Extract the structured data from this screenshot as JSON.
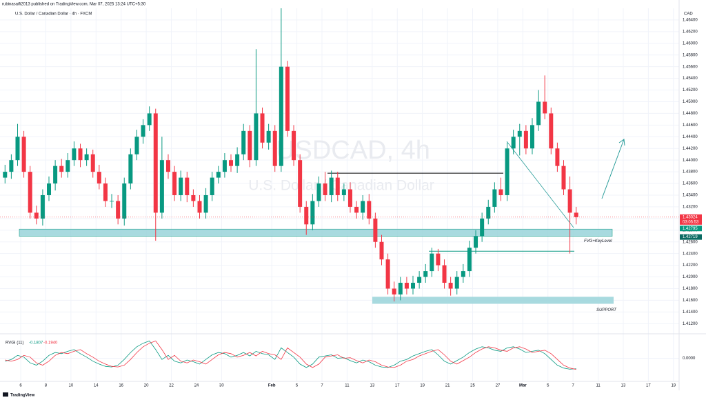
{
  "chart_data": {
    "type": "candlestick",
    "publisher_note": "rubinasaifi2013 published on TradingView.com, Mar 07, 2025 13:24 UTC+5:30",
    "title": "U.S. Dollar / Canadian Dollar · 4h · FXCM",
    "watermark": [
      "USDCAD, 4h",
      "U.S. Dollar / Canadian Dollar"
    ],
    "currency": "CAD",
    "countdown": "03:05:53",
    "logo": "TradingView",
    "up_color": "#089981",
    "down_color": "#f23645",
    "grid": true,
    "xlim": [
      -0.8,
      107.4
    ],
    "xticks": [
      {
        "value": 2.5,
        "label": "6"
      },
      {
        "value": 6.5,
        "label": "8"
      },
      {
        "value": 10.5,
        "label": "10"
      },
      {
        "value": 14.5,
        "label": "14"
      },
      {
        "value": 18.5,
        "label": "16"
      },
      {
        "value": 22.5,
        "label": "20"
      },
      {
        "value": 26.5,
        "label": "22"
      },
      {
        "value": 30.5,
        "label": "24"
      },
      {
        "value": 34.5,
        "label": "30"
      },
      {
        "value": 42.5,
        "label": "Feb"
      },
      {
        "value": 46.5,
        "label": "5"
      },
      {
        "value": 50.5,
        "label": "7"
      },
      {
        "value": 54.5,
        "label": "11"
      },
      {
        "value": 58.5,
        "label": "13"
      },
      {
        "value": 62.5,
        "label": "17"
      },
      {
        "value": 66.5,
        "label": "19"
      },
      {
        "value": 70.5,
        "label": "21"
      },
      {
        "value": 74.5,
        "label": "25"
      },
      {
        "value": 78.5,
        "label": "27"
      },
      {
        "value": 82.5,
        "label": "Mar"
      },
      {
        "value": 86.5,
        "label": "5"
      },
      {
        "value": 90.5,
        "label": "7"
      },
      {
        "value": 94.5,
        "label": "11"
      },
      {
        "value": 98.5,
        "label": "13"
      },
      {
        "value": 102.5,
        "label": "17"
      },
      {
        "value": 106.5,
        "label": "19"
      }
    ],
    "ylim": [
      1.4105,
      1.466
    ],
    "yticks": [
      {
        "value": 1.412,
        "label": "1.41200"
      },
      {
        "value": 1.414,
        "label": "1.41400"
      },
      {
        "value": 1.416,
        "label": "1.41600"
      },
      {
        "value": 1.418,
        "label": "1.41800"
      },
      {
        "value": 1.42,
        "label": "1.42000"
      },
      {
        "value": 1.422,
        "label": "1.42200"
      },
      {
        "value": 1.424,
        "label": "1.42400"
      },
      {
        "value": 1.426,
        "label": "1.42600"
      },
      {
        "value": 1.428,
        "label": "1.42800"
      },
      {
        "value": 1.43,
        "label": "1.43000"
      },
      {
        "value": 1.432,
        "label": "1.43200"
      },
      {
        "value": 1.434,
        "label": "1.43400"
      },
      {
        "value": 1.436,
        "label": "1.43600"
      },
      {
        "value": 1.438,
        "label": "1.43800"
      },
      {
        "value": 1.44,
        "label": "1.44000"
      },
      {
        "value": 1.442,
        "label": "1.44200"
      },
      {
        "value": 1.444,
        "label": "1.44400"
      },
      {
        "value": 1.446,
        "label": "1.44600"
      },
      {
        "value": 1.448,
        "label": "1.44800"
      },
      {
        "value": 1.45,
        "label": "1.45000"
      },
      {
        "value": 1.452,
        "label": "1.45200"
      },
      {
        "value": 1.454,
        "label": "1.45400"
      },
      {
        "value": 1.456,
        "label": "1.45600"
      },
      {
        "value": 1.458,
        "label": "1.45800"
      },
      {
        "value": 1.46,
        "label": "1.46000"
      },
      {
        "value": 1.462,
        "label": "1.46200"
      },
      {
        "value": 1.464,
        "label": "1.46400"
      }
    ],
    "open": [
      1.437,
      1.438,
      1.44,
      1.444,
      1.438,
      1.431,
      1.43,
      1.434,
      1.436,
      1.439,
      1.438,
      1.44,
      1.442,
      1.44,
      1.441,
      1.438,
      1.436,
      1.433,
      1.433,
      1.43,
      1.436,
      1.441,
      1.444,
      1.446,
      1.448,
      1.431,
      1.44,
      1.438,
      1.434,
      1.437,
      1.434,
      1.433,
      1.431,
      1.434,
      1.437,
      1.438,
      1.44,
      1.439,
      1.441,
      1.445,
      1.44,
      1.448,
      1.443,
      1.445,
      1.439,
      1.456,
      1.445,
      1.44,
      1.432,
      1.429,
      1.433,
      1.436,
      1.434,
      1.437,
      1.434,
      1.435,
      1.432,
      1.431,
      1.433,
      1.43,
      1.426,
      1.423,
      1.418,
      1.417,
      1.419,
      1.418,
      1.419,
      1.42,
      1.421,
      1.424,
      1.422,
      1.419,
      1.418,
      1.42,
      1.421,
      1.425,
      1.427,
      1.43,
      1.432,
      1.435,
      1.434,
      1.442,
      1.444,
      1.445,
      1.442,
      1.446,
      1.45,
      1.448,
      1.442,
      1.439,
      1.435,
      1.431
    ],
    "high": [
      1.4392,
      1.441,
      1.4462,
      1.445,
      1.439,
      1.4322,
      1.435,
      1.4372,
      1.44,
      1.4402,
      1.4412,
      1.4432,
      1.4428,
      1.442,
      1.4418,
      1.4392,
      1.437,
      1.4342,
      1.434,
      1.437,
      1.442,
      1.4452,
      1.447,
      1.4492,
      1.4488,
      1.444,
      1.441,
      1.439,
      1.4382,
      1.438,
      1.435,
      1.434,
      1.4352,
      1.438,
      1.439,
      1.4412,
      1.441,
      1.4422,
      1.4462,
      1.446,
      1.459,
      1.449,
      1.4462,
      1.446,
      1.466,
      1.457,
      1.446,
      1.441,
      1.433,
      1.4342,
      1.4372,
      1.438,
      1.4382,
      1.438,
      1.436,
      1.4362,
      1.433,
      1.434,
      1.4342,
      1.431,
      1.4272,
      1.424,
      1.4192,
      1.42,
      1.42,
      1.4202,
      1.421,
      1.4222,
      1.425,
      1.4248,
      1.423,
      1.42,
      1.421,
      1.4222,
      1.4262,
      1.428,
      1.431,
      1.4332,
      1.4362,
      1.437,
      1.443,
      1.4452,
      1.4462,
      1.446,
      1.4472,
      1.452,
      1.4545,
      1.449,
      1.443,
      1.44,
      1.4372,
      1.432
    ],
    "low": [
      1.436,
      1.4368,
      1.439,
      1.437,
      1.43,
      1.429,
      1.4288,
      1.433,
      1.4348,
      1.437,
      1.437,
      1.439,
      1.4388,
      1.439,
      1.437,
      1.435,
      1.432,
      1.4318,
      1.429,
      1.4288,
      1.435,
      1.44,
      1.4428,
      1.445,
      1.4262,
      1.43,
      1.4368,
      1.433,
      1.433,
      1.4328,
      1.432,
      1.43,
      1.43,
      1.433,
      1.436,
      1.437,
      1.438,
      1.4378,
      1.44,
      1.4388,
      1.439,
      1.442,
      1.4418,
      1.438,
      1.438,
      1.444,
      1.439,
      1.431,
      1.4272,
      1.428,
      1.432,
      1.433,
      1.4328,
      1.433,
      1.433,
      1.431,
      1.43,
      1.4298,
      1.429,
      1.425,
      1.422,
      1.417,
      1.4158,
      1.416,
      1.417,
      1.417,
      1.418,
      1.419,
      1.42,
      1.421,
      1.418,
      1.4168,
      1.417,
      1.419,
      1.42,
      1.424,
      1.426,
      1.429,
      1.431,
      1.433,
      1.433,
      1.441,
      1.4408,
      1.441,
      1.441,
      1.445,
      1.447,
      1.441,
      1.438,
      1.434,
      1.424,
      1.429
    ],
    "close": [
      1.438,
      1.44,
      1.444,
      1.438,
      1.431,
      1.43,
      1.434,
      1.436,
      1.439,
      1.438,
      1.44,
      1.442,
      1.44,
      1.441,
      1.438,
      1.436,
      1.433,
      1.433,
      1.43,
      1.436,
      1.441,
      1.444,
      1.446,
      1.448,
      1.431,
      1.44,
      1.438,
      1.434,
      1.437,
      1.434,
      1.433,
      1.431,
      1.434,
      1.437,
      1.438,
      1.44,
      1.439,
      1.441,
      1.445,
      1.44,
      1.448,
      1.443,
      1.445,
      1.439,
      1.456,
      1.445,
      1.44,
      1.432,
      1.429,
      1.433,
      1.436,
      1.434,
      1.437,
      1.434,
      1.435,
      1.432,
      1.431,
      1.433,
      1.43,
      1.426,
      1.423,
      1.418,
      1.417,
      1.419,
      1.418,
      1.419,
      1.42,
      1.421,
      1.424,
      1.422,
      1.419,
      1.418,
      1.42,
      1.421,
      1.425,
      1.427,
      1.43,
      1.432,
      1.435,
      1.434,
      1.442,
      1.444,
      1.445,
      1.442,
      1.446,
      1.45,
      1.448,
      1.442,
      1.439,
      1.435,
      1.431,
      1.43024
    ],
    "zones": [
      {
        "label": "FVG+KeyLevel",
        "top": 1.42795,
        "bottom": 1.42719,
        "color": "#9fd6dc"
      },
      {
        "label": "SUPPORT",
        "top": 1.4166,
        "bottom": 1.4154,
        "color": "#9fd6dc"
      }
    ],
    "levels": [
      {
        "value": 1.43776,
        "color": "#000000"
      },
      {
        "value": 1.4244,
        "color": "#089981"
      }
    ],
    "indicator": {
      "name": "RVGI (11)",
      "values_shown": [
        "-0.1807",
        "-0.1940"
      ],
      "ylim": [
        -0.4,
        0.4
      ],
      "yticks": [
        {
          "value": 0,
          "label": "0.0000"
        }
      ],
      "series": [
        {
          "color": "#089981",
          "values": [
            -0.05,
            -0.02,
            0.05,
            0.02,
            -0.08,
            -0.12,
            -0.05,
            0.05,
            0.1,
            0.08,
            0.12,
            0.15,
            0.08,
            0.02,
            -0.05,
            -0.1,
            -0.14,
            -0.15,
            -0.12,
            -0.02,
            0.1,
            0.2,
            0.26,
            0.3,
            0.15,
            -0.02,
            0.05,
            -0.05,
            -0.08,
            -0.03,
            -0.06,
            -0.1,
            -0.02,
            0.06,
            0.1,
            0.08,
            0.02,
            0.05,
            0.1,
            0.04,
            0.12,
            0.08,
            0.06,
            -0.02,
            0.18,
            0.1,
            0.02,
            -0.1,
            -0.16,
            -0.1,
            0.02,
            0.04,
            0.06,
            0.0,
            0.01,
            -0.04,
            -0.08,
            -0.03,
            -0.06,
            -0.12,
            -0.15,
            -0.16,
            -0.12,
            -0.05,
            -0.02,
            0.04,
            0.08,
            0.12,
            0.15,
            0.06,
            -0.05,
            -0.1,
            -0.04,
            0.02,
            0.1,
            0.16,
            0.2,
            0.18,
            0.14,
            0.12,
            0.18,
            0.2,
            0.16,
            0.1,
            0.12,
            0.14,
            0.08,
            -0.02,
            -0.12,
            -0.17,
            -0.19,
            -0.1807
          ]
        },
        {
          "color": "#f23645",
          "values": [
            -0.03,
            -0.05,
            -0.02,
            0.05,
            0.02,
            -0.08,
            -0.12,
            -0.05,
            0.05,
            0.1,
            0.08,
            0.12,
            0.15,
            0.08,
            0.02,
            -0.05,
            -0.1,
            -0.14,
            -0.15,
            -0.12,
            -0.02,
            0.1,
            0.2,
            0.26,
            0.3,
            0.15,
            -0.02,
            0.05,
            -0.05,
            -0.08,
            -0.03,
            -0.06,
            -0.1,
            -0.02,
            0.06,
            0.1,
            0.08,
            0.02,
            0.05,
            0.1,
            0.04,
            0.12,
            0.08,
            0.06,
            -0.02,
            0.18,
            0.1,
            0.02,
            -0.1,
            -0.16,
            -0.1,
            0.02,
            0.04,
            0.06,
            0.0,
            0.01,
            -0.04,
            -0.08,
            -0.03,
            -0.06,
            -0.12,
            -0.15,
            -0.16,
            -0.12,
            -0.05,
            -0.02,
            0.04,
            0.08,
            0.12,
            0.15,
            0.06,
            -0.05,
            -0.1,
            -0.04,
            0.02,
            0.1,
            0.16,
            0.2,
            0.18,
            0.14,
            0.12,
            0.18,
            0.2,
            0.16,
            0.1,
            0.12,
            0.14,
            0.08,
            -0.02,
            -0.12,
            -0.17,
            -0.194
          ]
        }
      ]
    }
  }
}
